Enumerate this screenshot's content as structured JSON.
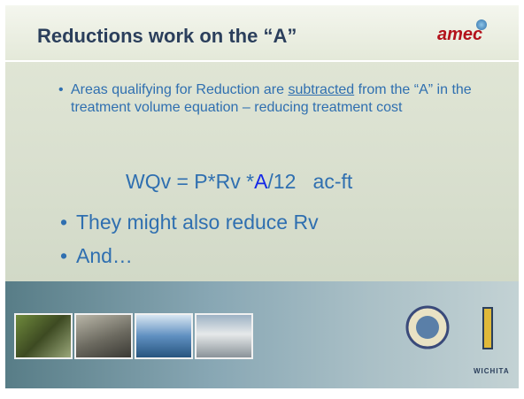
{
  "header": {
    "title": "Reductions work on the “A”",
    "logo": "amec"
  },
  "bullets": [
    {
      "parts": [
        "Areas qualifying for Reduction are ",
        "subtracted",
        " from the “A” in the treatment volume equation – reducing treatment cost"
      ]
    },
    {
      "text": "They might also reduce Rv"
    },
    {
      "text": "And…"
    }
  ],
  "equation": {
    "parts": [
      "WQv = P*Rv *",
      "A",
      "/12   ac-ft"
    ]
  },
  "footer": {
    "logo_text": "WICHITA"
  }
}
